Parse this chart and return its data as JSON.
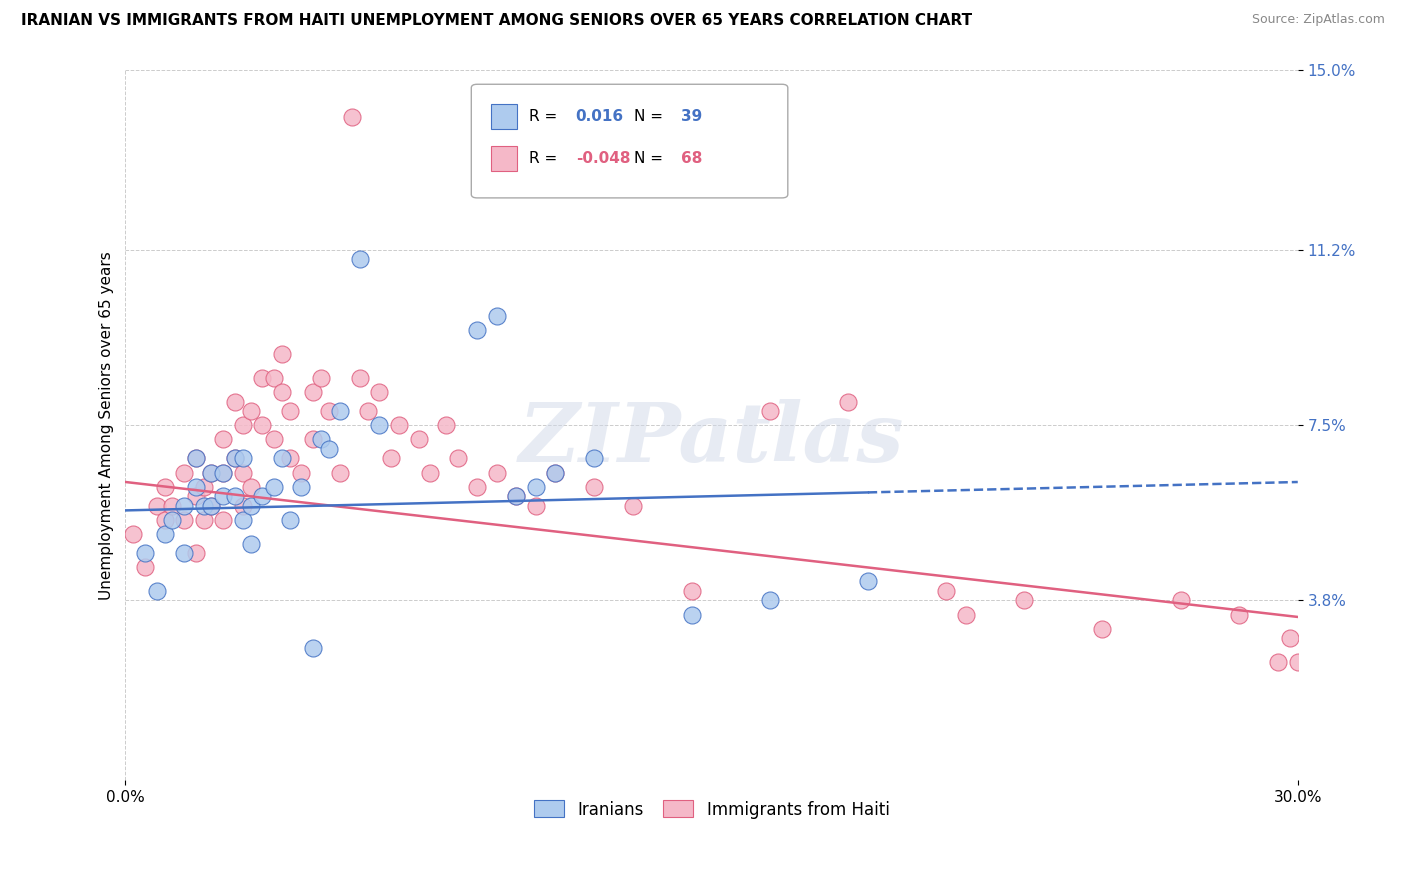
{
  "title": "IRANIAN VS IMMIGRANTS FROM HAITI UNEMPLOYMENT AMONG SENIORS OVER 65 YEARS CORRELATION CHART",
  "source": "Source: ZipAtlas.com",
  "ylabel": "Unemployment Among Seniors over 65 years",
  "xmin": 0.0,
  "xmax": 0.3,
  "ymin": 0.0,
  "ymax": 0.15,
  "iranians_R": 0.016,
  "iranians_N": 39,
  "haiti_R": -0.048,
  "haiti_N": 68,
  "iranians_color": "#aecbee",
  "haiti_color": "#f5b8c8",
  "iranians_line_color": "#4472c4",
  "haiti_line_color": "#e06080",
  "iranians_trendline_style": "--",
  "haiti_trendline_style": "-",
  "watermark": "ZIPatlas",
  "legend_label_iranians": "Iranians",
  "legend_label_haiti": "Immigrants from Haiti",
  "y_tick_vals": [
    0.038,
    0.075,
    0.112,
    0.15
  ],
  "y_tick_labels": [
    "3.8%",
    "7.5%",
    "11.2%",
    "15.0%"
  ],
  "x_tick_vals": [
    0.0,
    0.3
  ],
  "x_tick_labels": [
    "0.0%",
    "30.0%"
  ],
  "iranians_x": [
    0.005,
    0.008,
    0.01,
    0.012,
    0.015,
    0.015,
    0.018,
    0.018,
    0.02,
    0.022,
    0.022,
    0.025,
    0.025,
    0.028,
    0.028,
    0.03,
    0.03,
    0.032,
    0.032,
    0.035,
    0.038,
    0.04,
    0.042,
    0.045,
    0.048,
    0.05,
    0.052,
    0.055,
    0.06,
    0.065,
    0.09,
    0.095,
    0.1,
    0.105,
    0.11,
    0.12,
    0.145,
    0.165,
    0.19
  ],
  "iranians_y": [
    0.048,
    0.04,
    0.052,
    0.055,
    0.058,
    0.048,
    0.068,
    0.062,
    0.058,
    0.065,
    0.058,
    0.065,
    0.06,
    0.068,
    0.06,
    0.068,
    0.055,
    0.058,
    0.05,
    0.06,
    0.062,
    0.068,
    0.055,
    0.062,
    0.028,
    0.072,
    0.07,
    0.078,
    0.11,
    0.075,
    0.095,
    0.098,
    0.06,
    0.062,
    0.065,
    0.068,
    0.035,
    0.038,
    0.042
  ],
  "haiti_x": [
    0.002,
    0.005,
    0.008,
    0.01,
    0.01,
    0.012,
    0.015,
    0.015,
    0.018,
    0.018,
    0.018,
    0.02,
    0.02,
    0.022,
    0.022,
    0.025,
    0.025,
    0.025,
    0.028,
    0.028,
    0.03,
    0.03,
    0.03,
    0.032,
    0.032,
    0.035,
    0.035,
    0.038,
    0.038,
    0.04,
    0.04,
    0.042,
    0.042,
    0.045,
    0.048,
    0.048,
    0.05,
    0.052,
    0.055,
    0.058,
    0.06,
    0.062,
    0.065,
    0.068,
    0.07,
    0.075,
    0.078,
    0.082,
    0.085,
    0.09,
    0.095,
    0.1,
    0.105,
    0.11,
    0.12,
    0.13,
    0.145,
    0.165,
    0.185,
    0.21,
    0.215,
    0.23,
    0.25,
    0.27,
    0.285,
    0.295,
    0.298,
    0.3
  ],
  "haiti_y": [
    0.052,
    0.045,
    0.058,
    0.062,
    0.055,
    0.058,
    0.065,
    0.055,
    0.068,
    0.06,
    0.048,
    0.062,
    0.055,
    0.065,
    0.058,
    0.072,
    0.065,
    0.055,
    0.08,
    0.068,
    0.075,
    0.065,
    0.058,
    0.078,
    0.062,
    0.085,
    0.075,
    0.085,
    0.072,
    0.09,
    0.082,
    0.078,
    0.068,
    0.065,
    0.082,
    0.072,
    0.085,
    0.078,
    0.065,
    0.14,
    0.085,
    0.078,
    0.082,
    0.068,
    0.075,
    0.072,
    0.065,
    0.075,
    0.068,
    0.062,
    0.065,
    0.06,
    0.058,
    0.065,
    0.062,
    0.058,
    0.04,
    0.078,
    0.08,
    0.04,
    0.035,
    0.038,
    0.032,
    0.038,
    0.035,
    0.025,
    0.03,
    0.025
  ],
  "iran_trendline_intercept": 0.057,
  "iran_trendline_slope": 0.02,
  "haiti_trendline_intercept": 0.063,
  "haiti_trendline_slope": -0.095
}
